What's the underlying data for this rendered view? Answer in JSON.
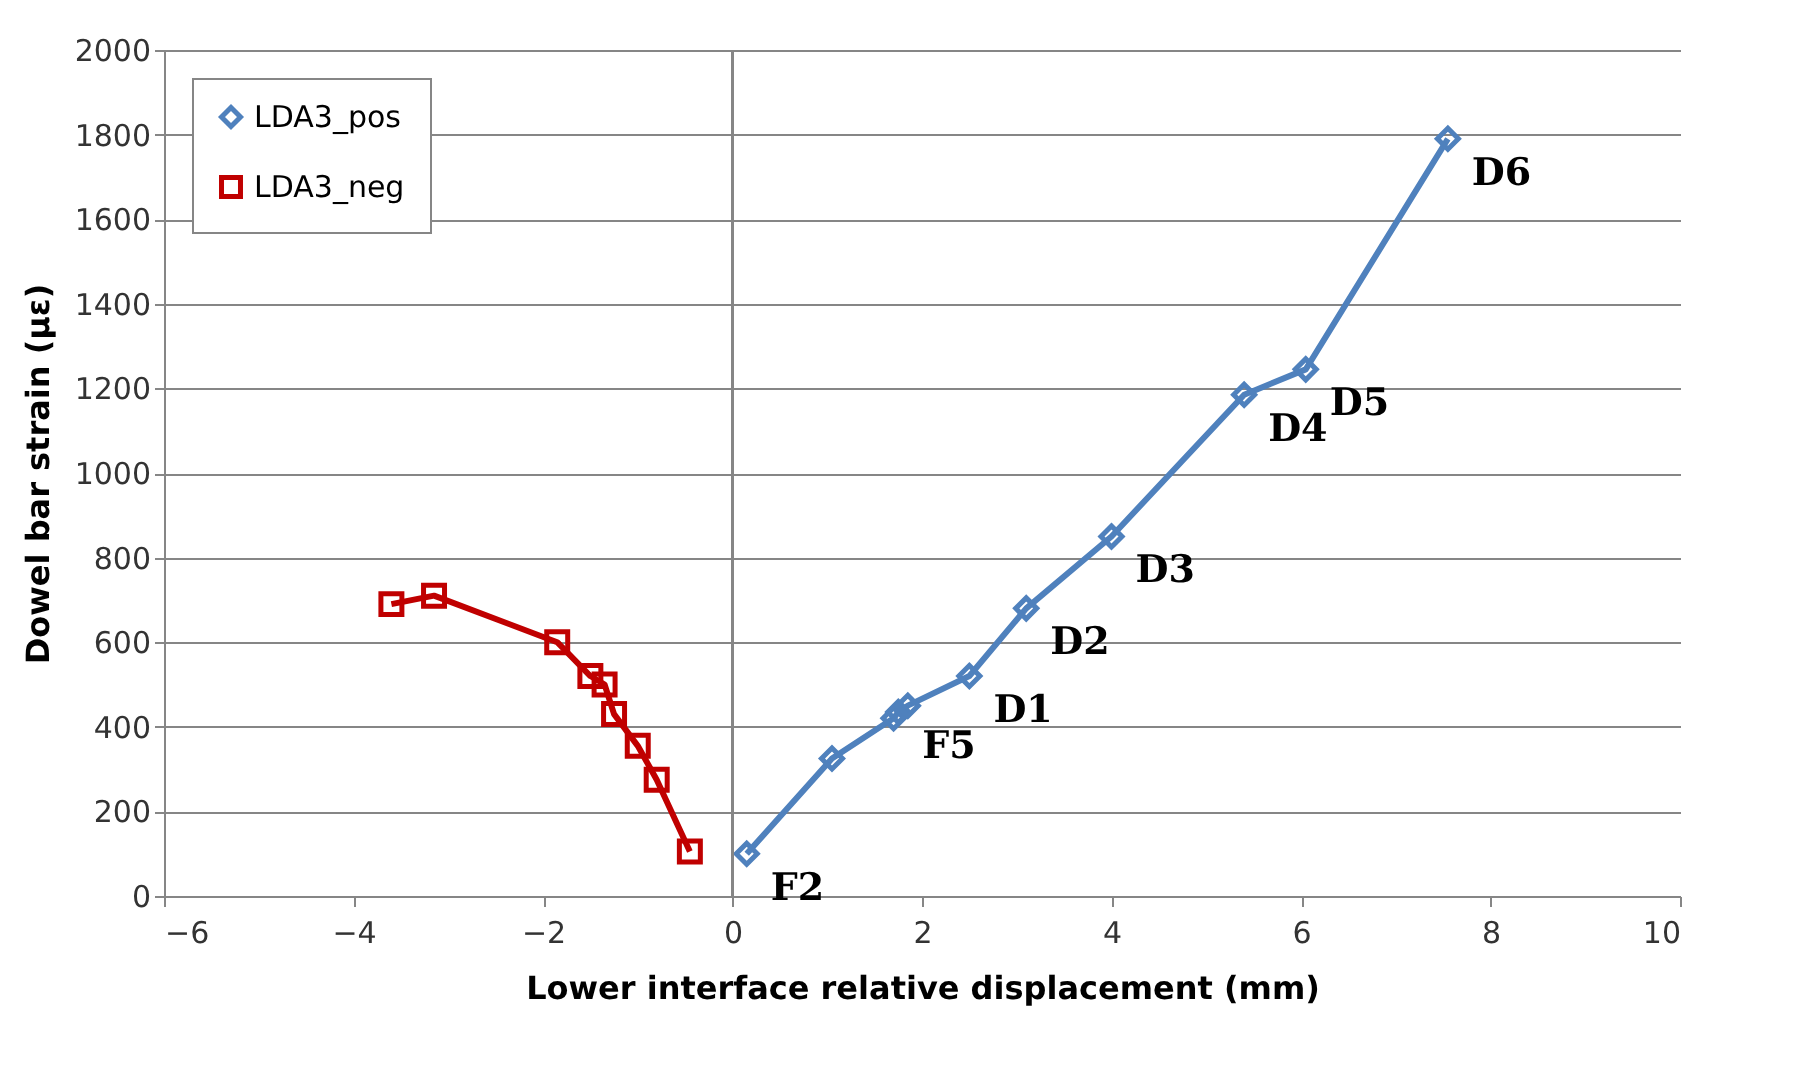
{
  "chart_data": {
    "type": "line",
    "xlabel": "Lower interface relative displacement (mm)",
    "ylabel": "Dowel bar strain (με)",
    "series": [
      {
        "name": "LDA3_pos",
        "color": "#4f81bd",
        "marker": "diamond",
        "x": [
          0.15,
          1.05,
          1.7,
          1.75,
          1.85,
          2.5,
          3.1,
          4.0,
          5.4,
          6.05,
          7.55
        ],
        "values": [
          100,
          325,
          420,
          435,
          450,
          520,
          680,
          850,
          1185,
          1245,
          1790
        ]
      },
      {
        "name": "LDA3_neg",
        "color": "#c00000",
        "marker": "square",
        "x": [
          -3.6,
          -3.15,
          -1.85,
          -1.5,
          -1.35,
          -1.25,
          -1.0,
          -0.8,
          -0.45
        ],
        "values": [
          690,
          710,
          600,
          520,
          500,
          430,
          355,
          275,
          105
        ]
      }
    ],
    "annotations": [
      {
        "text": "F2",
        "x": 0.15,
        "y": 100
      },
      {
        "text": "F5",
        "x": 1.75,
        "y": 435
      },
      {
        "text": "D1",
        "x": 2.5,
        "y": 520
      },
      {
        "text": "D2",
        "x": 3.1,
        "y": 680
      },
      {
        "text": "D3",
        "x": 4.0,
        "y": 850
      },
      {
        "text": "D4",
        "x": 5.4,
        "y": 1185
      },
      {
        "text": "D5",
        "x": 6.05,
        "y": 1245
      },
      {
        "text": "D6",
        "x": 7.55,
        "y": 1790
      }
    ],
    "ref_lines": [
      {
        "axis": "x",
        "value": 0,
        "color": "#868686"
      }
    ],
    "xlim": [
      -6,
      10
    ],
    "xticks": [
      -6,
      -4,
      -2,
      0,
      2,
      4,
      6,
      8,
      10
    ],
    "ylim": [
      0,
      2000
    ],
    "yticks": [
      0,
      200,
      400,
      600,
      800,
      1000,
      1200,
      1400,
      1600,
      1800,
      2000
    ],
    "grid": "y",
    "legend": "top left",
    "line_style": "solid"
  }
}
